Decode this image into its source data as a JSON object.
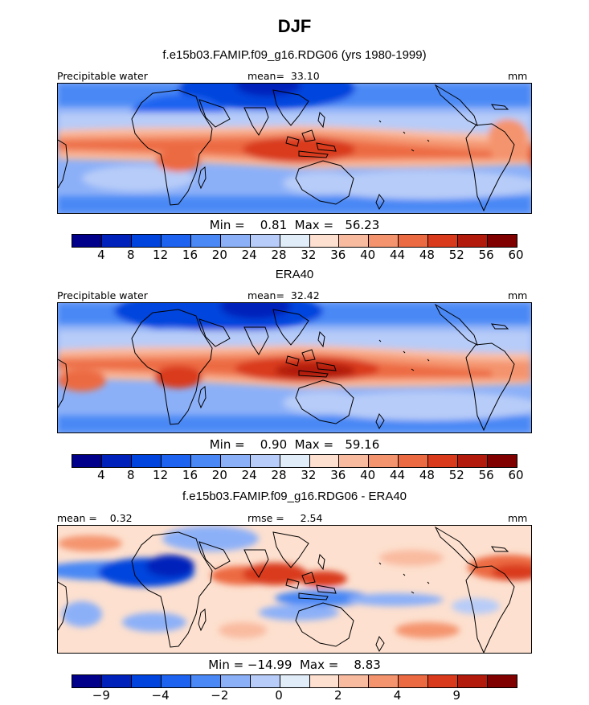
{
  "title": "DJF",
  "colormaps": {
    "abs": [
      "#00008b",
      "#0022bb",
      "#0044dd",
      "#1e63f0",
      "#4a88f5",
      "#8cb0f8",
      "#b7ccf8",
      "#e0ecf8",
      "#fde0cf",
      "#f9bba0",
      "#f4946e",
      "#ec6a42",
      "#d93a1c",
      "#b21a0c",
      "#800000"
    ],
    "diff": [
      "#00008b",
      "#0022bb",
      "#0044dd",
      "#1e63f0",
      "#4a88f5",
      "#8cb0f8",
      "#b7ccf8",
      "#e0ecf8",
      "#fde0cf",
      "#f9bba0",
      "#f4946e",
      "#ec6a42",
      "#d93a1c",
      "#b21a0c",
      "#800000"
    ]
  },
  "panels": [
    {
      "title": "f.e15b03.FAMIP.f09_g16.RDG06 (yrs 1980-1999)",
      "left": "Precipitable water",
      "center": "mean=  33.10",
      "right": "mm",
      "minmax": "Min =    0.81  Max =   56.23",
      "colorbar_ticks": [
        "4",
        "8",
        "12",
        "16",
        "20",
        "24",
        "28",
        "32",
        "36",
        "40",
        "44",
        "48",
        "52",
        "56",
        "60"
      ],
      "palette": "abs"
    },
    {
      "title": "ERA40",
      "left": "Precipitable water",
      "center": "mean=  32.42",
      "right": "mm",
      "minmax": "Min =    0.90  Max =   59.16",
      "colorbar_ticks": [
        "4",
        "8",
        "12",
        "16",
        "20",
        "24",
        "28",
        "32",
        "36",
        "40",
        "44",
        "48",
        "52",
        "56",
        "60"
      ],
      "palette": "abs"
    },
    {
      "title": "f.e15b03.FAMIP.f09_g16.RDG06 - ERA40",
      "left": "mean =    0.32",
      "center": "rmse =     2.54",
      "right": "mm",
      "minmax": "Min = −14.99  Max =    8.83",
      "colorbar_ticks": [
        "−9",
        "−4",
        "−2",
        "0",
        "2",
        "4",
        "9"
      ],
      "palette": "diff"
    }
  ],
  "chart_data": [
    {
      "type": "heatmap",
      "title": "f.e15b03.FAMIP.f09_g16.RDG06 (yrs 1980-1999)",
      "variable": "Precipitable water",
      "units": "mm",
      "mean": 33.1,
      "min": 0.81,
      "max": 56.23,
      "contour_levels": [
        4,
        8,
        12,
        16,
        20,
        24,
        28,
        32,
        36,
        40,
        44,
        48,
        52,
        56,
        60
      ]
    },
    {
      "type": "heatmap",
      "title": "ERA40",
      "variable": "Precipitable water",
      "units": "mm",
      "mean": 32.42,
      "min": 0.9,
      "max": 59.16,
      "contour_levels": [
        4,
        8,
        12,
        16,
        20,
        24,
        28,
        32,
        36,
        40,
        44,
        48,
        52,
        56,
        60
      ]
    },
    {
      "type": "heatmap",
      "title": "f.e15b03.FAMIP.f09_g16.RDG06 - ERA40",
      "units": "mm",
      "mean": 0.32,
      "rmse": 2.54,
      "min": -14.99,
      "max": 8.83,
      "contour_labels": [
        -9,
        -4,
        -2,
        0,
        2,
        4,
        9
      ]
    }
  ]
}
